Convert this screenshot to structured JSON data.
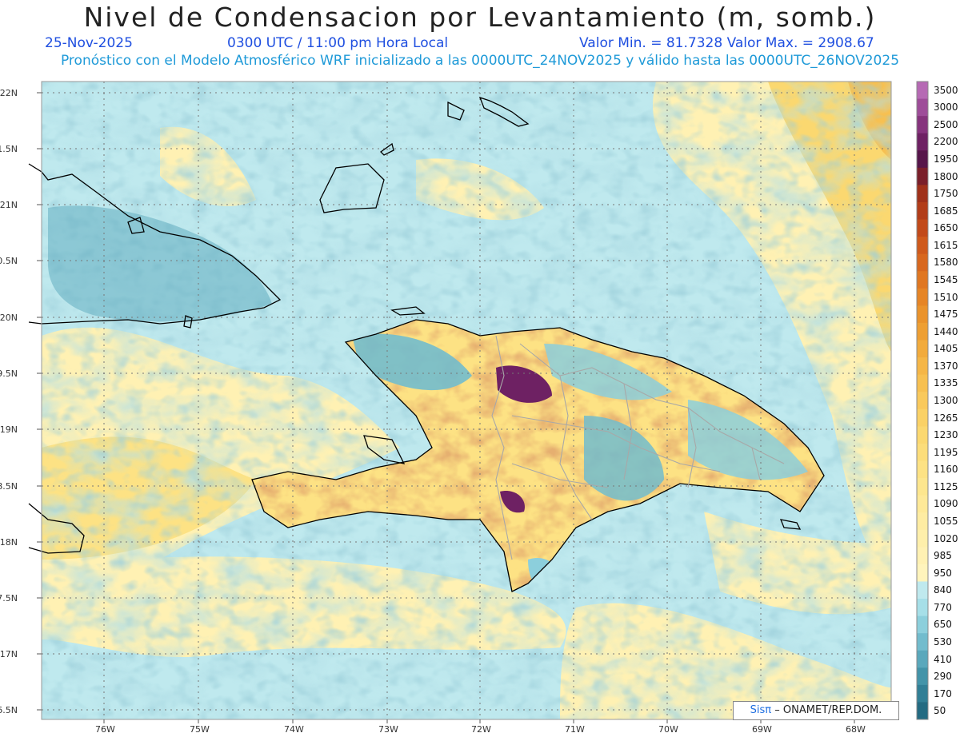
{
  "header": {
    "title": "Nivel de Condensacion por Levantamiento (m, somb.)",
    "date": "25-Nov-2025",
    "time": "0300 UTC / 11:00 pm Hora Local",
    "minmax": "Valor Min. = 81.7328  Valor Max. = 2908.67",
    "forecast": "Pronóstico con el Modelo Atmosférico WRF inicializado a las 0000UTC_24NOV2025 y válido hasta las  0000UTC_26NOV2025"
  },
  "axes": {
    "lat_labels": [
      "22N",
      "21.5N",
      "21N",
      "20.5N",
      "20N",
      "19.5N",
      "19N",
      "18.5N",
      "18N",
      "17.5N",
      "17N",
      "16.5N"
    ],
    "lon_labels": [
      "76W",
      "75W",
      "74W",
      "73W",
      "72W",
      "71W",
      "70W",
      "69W",
      "68W"
    ]
  },
  "colorbar": {
    "labels": [
      "3500",
      "3000",
      "2500",
      "2200",
      "1950",
      "1800",
      "1750",
      "1685",
      "1650",
      "1615",
      "1580",
      "1545",
      "1510",
      "1475",
      "1440",
      "1405",
      "1370",
      "1335",
      "1300",
      "1265",
      "1230",
      "1195",
      "1160",
      "1125",
      "1090",
      "1055",
      "1020",
      "985",
      "950",
      "840",
      "770",
      "650",
      "530",
      "410",
      "290",
      "170",
      "50"
    ],
    "colors": [
      "#b66ab4",
      "#9e4d99",
      "#86347d",
      "#6e2163",
      "#56164a",
      "#7a1f2a",
      "#a0311a",
      "#b23d19",
      "#c24a1a",
      "#cf5a1c",
      "#d8681f",
      "#e07722",
      "#e68526",
      "#ea932c",
      "#ee9f33",
      "#f2ab3d",
      "#f5b647",
      "#f7c051",
      "#f9c95c",
      "#fad166",
      "#fbd870",
      "#fcdd7a",
      "#fde284",
      "#fde68e",
      "#fee998",
      "#feeca2",
      "#feefab",
      "#fff1b3",
      "#fff4bc",
      "#bfe9ee",
      "#a6dfe8",
      "#8ccfdc",
      "#72bccd",
      "#5aa8bc",
      "#4394a9",
      "#317f96",
      "#246b82"
    ]
  },
  "credit": {
    "logo": "Sisπ",
    "text": "– ONAMET/REP.DOM."
  }
}
